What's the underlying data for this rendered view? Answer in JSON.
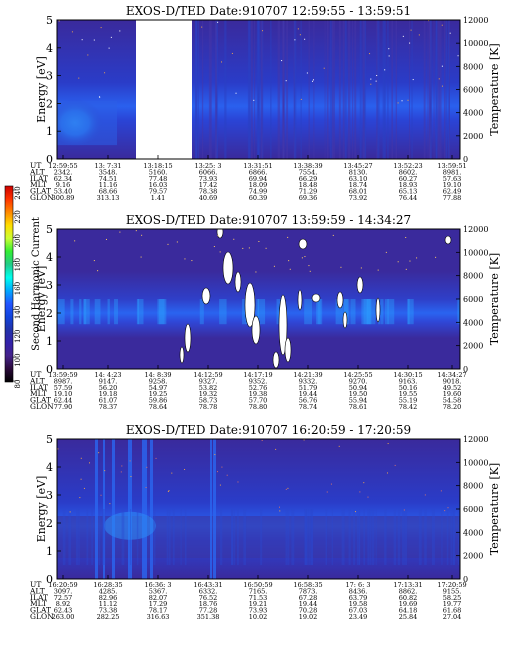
{
  "colorbar": {
    "label": "Second Harmonic Current",
    "ticks": [
      "240",
      "220",
      "200",
      "180",
      "160",
      "140",
      "120",
      "100",
      "80"
    ],
    "colors": [
      "#cc0000",
      "#ff3300",
      "#ff8800",
      "#ffdd00",
      "#ccff33",
      "#33ee33",
      "#22cc88",
      "#00ffee",
      "#00aaff",
      "#2255ff",
      "#1144dd",
      "#2233aa",
      "#3322aa",
      "#44228a",
      "#2a0a3a",
      "#000000"
    ]
  },
  "row_labels": [
    "UT",
    "ALT",
    "ILAT",
    "MLT",
    "GLAT",
    "GLON"
  ],
  "chart_data": [
    {
      "type": "heatmap",
      "title": "EXOS-D/TED   Date:910707   12:59:55 - 13:59:51",
      "ylabel": "Energy [eV]",
      "y2label": "Temperature [K]",
      "yticks": [
        "5",
        "4",
        "3",
        "2",
        "1",
        "0"
      ],
      "ylim": [
        0,
        5
      ],
      "y2ticks": [
        "12000",
        "10000",
        "8000",
        "6000",
        "4000",
        "2000",
        "0"
      ],
      "y2lim": [
        0,
        12000
      ],
      "data_gaps": [
        {
          "from": "13:18:15",
          "to": "13:25:3"
        }
      ],
      "columns": [
        {
          "UT": "12:59:55",
          "ALT": "2342.",
          "ILAT": "62.34",
          "MLT": "9.16",
          "GLAT": "53.40",
          "GLON": "300.89"
        },
        {
          "UT": "13: 7:31",
          "ALT": "3548.",
          "ILAT": "74.51",
          "MLT": "11.16",
          "GLAT": "68.66",
          "GLON": "313.13"
        },
        {
          "UT": "13:18:15",
          "ALT": "5160.",
          "ILAT": "77.48",
          "MLT": "16.03",
          "GLAT": "79.57",
          "GLON": "1.41"
        },
        {
          "UT": "13:25: 3",
          "ALT": "6066.",
          "ILAT": "73.93",
          "MLT": "17.42",
          "GLAT": "78.38",
          "GLON": "40.69"
        },
        {
          "UT": "13:31:51",
          "ALT": "6866.",
          "ILAT": "69.94",
          "MLT": "18.09",
          "GLAT": "74.99",
          "GLON": "60.39"
        },
        {
          "UT": "13:38:39",
          "ALT": "7554.",
          "ILAT": "66.29",
          "MLT": "18.48",
          "GLAT": "71.29",
          "GLON": "69.36"
        },
        {
          "UT": "13:45:27",
          "ALT": "8130.",
          "ILAT": "63.10",
          "MLT": "18.74",
          "GLAT": "68.01",
          "GLON": "73.92"
        },
        {
          "UT": "13:52:23",
          "ALT": "8602.",
          "ILAT": "60.27",
          "MLT": "18.93",
          "GLAT": "65.13",
          "GLON": "76.44"
        },
        {
          "UT": "13:59:51",
          "ALT": "8981.",
          "ILAT": "57.63",
          "MLT": "19.10",
          "GLAT": "62.49",
          "GLON": "77.88"
        }
      ]
    },
    {
      "type": "heatmap",
      "title": "EXOS-D/TED   Date:910707   13:59:59 - 14:34:27",
      "ylabel": "Energy [eV]",
      "y2label": "Temperature [K]",
      "yticks": [
        "5",
        "4",
        "3",
        "2",
        "1",
        "0"
      ],
      "ylim": [
        0,
        5
      ],
      "y2ticks": [
        "12000",
        "10000",
        "8000",
        "6000",
        "4000",
        "2000",
        "0"
      ],
      "y2lim": [
        0,
        12000
      ],
      "columns": [
        {
          "UT": "13:59:59",
          "ALT": "8987.",
          "ILAT": "57.59",
          "MLT": "19.10",
          "GLAT": "62.44",
          "GLON": "77.90"
        },
        {
          "UT": "14: 4:23",
          "ALT": "9147.",
          "ILAT": "56.20",
          "MLT": "19.18",
          "GLAT": "61.07",
          "GLON": "78.37"
        },
        {
          "UT": "14: 8:39",
          "ALT": "9258.",
          "ILAT": "54.97",
          "MLT": "19.25",
          "GLAT": "59.86",
          "GLON": "78.64"
        },
        {
          "UT": "14:12:59",
          "ALT": "9327.",
          "ILAT": "53.82",
          "MLT": "19.32",
          "GLAT": "58.73",
          "GLON": "78.78"
        },
        {
          "UT": "14:17:19",
          "ALT": "9352.",
          "ILAT": "52.76",
          "MLT": "19.38",
          "GLAT": "57.70",
          "GLON": "78.80"
        },
        {
          "UT": "14:21:39",
          "ALT": "9332.",
          "ILAT": "51.79",
          "MLT": "19.44",
          "GLAT": "56.76",
          "GLON": "78.74"
        },
        {
          "UT": "14:25:55",
          "ALT": "9270.",
          "ILAT": "50.94",
          "MLT": "19.50",
          "GLAT": "55.94",
          "GLON": "78.61"
        },
        {
          "UT": "14:30:15",
          "ALT": "9163.",
          "ILAT": "50.16",
          "MLT": "19.55",
          "GLAT": "55.19",
          "GLON": "78.42"
        },
        {
          "UT": "14:34:27",
          "ALT": "9018.",
          "ILAT": "49.52",
          "MLT": "19.60",
          "GLAT": "54.58",
          "GLON": "78.20"
        }
      ]
    },
    {
      "type": "heatmap",
      "title": "EXOS-D/TED   Date:910707   16:20:59 - 17:20:59",
      "ylabel": "Energy [eV]",
      "y2label": "Temperature [K]",
      "yticks": [
        "5",
        "4",
        "3",
        "2",
        "1",
        "0"
      ],
      "ylim": [
        0,
        5
      ],
      "y2ticks": [
        "12000",
        "10000",
        "8000",
        "6000",
        "4000",
        "2000",
        "0"
      ],
      "y2lim": [
        0,
        12000
      ],
      "columns": [
        {
          "UT": "16:20:59",
          "ALT": "3097.",
          "ILAT": "72.57",
          "MLT": "8.92",
          "GLAT": "62.43",
          "GLON": "263.00"
        },
        {
          "UT": "16:28:35",
          "ALT": "4285.",
          "ILAT": "82.96",
          "MLT": "11.12",
          "GLAT": "73.38",
          "GLON": "282.25"
        },
        {
          "UT": "16:36: 3",
          "ALT": "5367.",
          "ILAT": "82.07",
          "MLT": "17.29",
          "GLAT": "78.17",
          "GLON": "316.63"
        },
        {
          "UT": "16:43:31",
          "ALT": "6332.",
          "ILAT": "76.52",
          "MLT": "18.76",
          "GLAT": "77.28",
          "GLON": "351.38"
        },
        {
          "UT": "16:50:59",
          "ALT": "7165.",
          "ILAT": "71.53",
          "MLT": "19.21",
          "GLAT": "73.93",
          "GLON": "10.02"
        },
        {
          "UT": "16:58:35",
          "ALT": "7873.",
          "ILAT": "67.28",
          "MLT": "19.44",
          "GLAT": "70.28",
          "GLON": "19.02"
        },
        {
          "UT": "17: 6: 3",
          "ALT": "8436.",
          "ILAT": "63.79",
          "MLT": "19.58",
          "GLAT": "67.03",
          "GLON": "23.49"
        },
        {
          "UT": "17:13:31",
          "ALT": "8862.",
          "ILAT": "60.82",
          "MLT": "19.69",
          "GLAT": "64.18",
          "GLON": "25.84"
        },
        {
          "UT": "17:20:59",
          "ALT": "9155.",
          "ILAT": "58.25",
          "MLT": "19.77",
          "GLAT": "61.68",
          "GLON": "27.04"
        }
      ]
    }
  ]
}
